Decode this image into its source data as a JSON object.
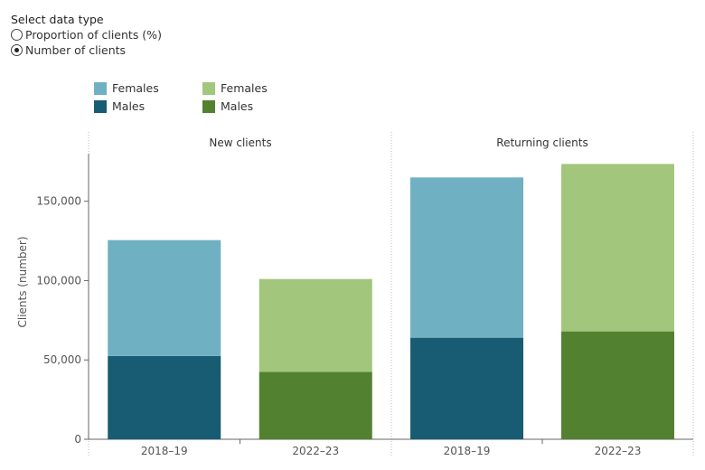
{
  "controls": {
    "title": "Select data type",
    "options": [
      {
        "label": "Proportion of clients (%)",
        "selected": false
      },
      {
        "label": "Number of clients",
        "selected": true
      }
    ]
  },
  "legend": {
    "left": [
      {
        "label": "Females",
        "color": "#6fb1c2"
      },
      {
        "label": "Males",
        "color": "#175c72"
      }
    ],
    "right": [
      {
        "label": "Females",
        "color": "#a2c67c"
      },
      {
        "label": "Males",
        "color": "#52822f"
      }
    ]
  },
  "chart_data": {
    "type": "bar",
    "stacked": true,
    "ylabel": "Clients (number)",
    "ylim": [
      0,
      180000
    ],
    "yticks": [
      0,
      50000,
      100000,
      150000
    ],
    "ytick_labels": [
      "0",
      "50,000",
      "100,000",
      "150,000"
    ],
    "panels": [
      {
        "title": "New clients",
        "categories": [
          "2018–19",
          "2022–23"
        ],
        "series": [
          {
            "name": "Males",
            "values": [
              52500,
              42500
            ],
            "colors": [
              "#175c72",
              "#52822f"
            ]
          },
          {
            "name": "Females",
            "values": [
              73000,
              58500
            ],
            "colors": [
              "#6fb1c2",
              "#a2c67c"
            ]
          }
        ]
      },
      {
        "title": "Returning clients",
        "categories": [
          "2018–19",
          "2022–23"
        ],
        "series": [
          {
            "name": "Males",
            "values": [
              64000,
              68000
            ],
            "colors": [
              "#175c72",
              "#52822f"
            ]
          },
          {
            "name": "Females",
            "values": [
              101000,
              105500
            ],
            "colors": [
              "#6fb1c2",
              "#a2c67c"
            ]
          }
        ]
      }
    ],
    "grid": false
  }
}
